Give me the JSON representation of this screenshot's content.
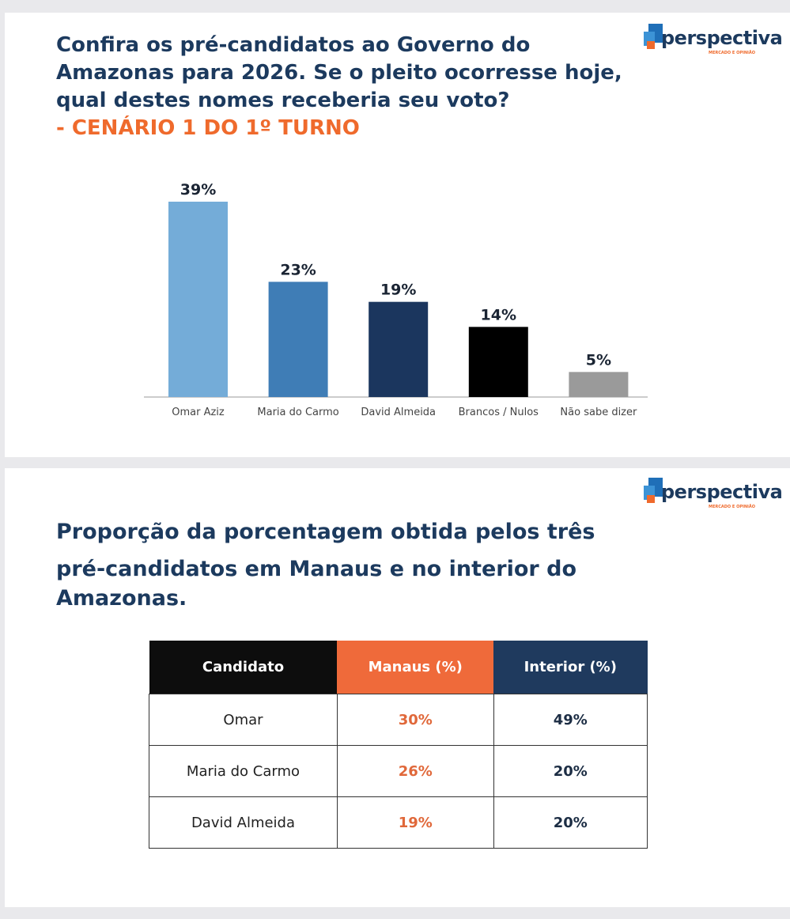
{
  "logo": {
    "text": "perspectiva",
    "tagline": "MERCADO E OPINIÃO"
  },
  "panel1": {
    "title_lines": [
      "Confira os pré-candidatos ao Governo do",
      "Amazonas para 2026. Se o pleito ocorresse hoje,",
      "qual destes nomes receberia seu voto?"
    ],
    "subtitle_prefix": "- ",
    "subtitle": "CENÁRIO 1 DO 1º TURNO"
  },
  "chart_data": {
    "type": "bar",
    "categories": [
      "Omar Aziz",
      "Maria do Carmo",
      "David Almeida",
      "Brancos / Nulos",
      "Não sabe dizer"
    ],
    "values": [
      39,
      23,
      19,
      14,
      5
    ],
    "labels": [
      "39%",
      "23%",
      "19%",
      "14%",
      "5%"
    ],
    "colors": [
      "#74acd8",
      "#3f7db6",
      "#1b365e",
      "#000000",
      "#9a9a9a"
    ],
    "ylim": [
      0,
      39
    ],
    "grid": false
  },
  "panel2": {
    "title_lines": [
      "Proporção da porcentagem obtida pelos três",
      "pré-candidatos em Manaus e no interior do",
      "Amazonas."
    ],
    "table": {
      "headers": [
        "Candidato",
        "Manaus (%)",
        "Interior (%)"
      ],
      "header_colors": [
        "#0d0d0d",
        "#ef6a3a",
        "#1f3a5e"
      ],
      "rows": [
        [
          "Omar",
          "30%",
          "49%"
        ],
        [
          "Maria do Carmo",
          "26%",
          "20%"
        ],
        [
          "David Almeida",
          "19%",
          "20%"
        ]
      ]
    }
  }
}
